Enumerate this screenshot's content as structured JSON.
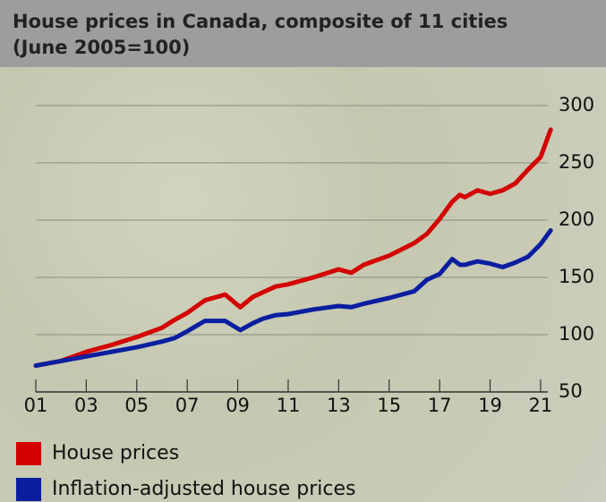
{
  "chart_data": {
    "type": "line",
    "title": "House prices in Canada, composite of 11 cities (June 2005=100)",
    "x": [
      2001,
      2002,
      2003,
      2004,
      2005,
      2006,
      2006.5,
      2007,
      2007.7,
      2008.5,
      2009.1,
      2009.6,
      2010,
      2010.5,
      2011,
      2012,
      2013,
      2013.5,
      2014,
      2015,
      2016,
      2016.5,
      2017,
      2017.5,
      2017.8,
      2018,
      2018.5,
      2019,
      2019.5,
      2020,
      2020.5,
      2021,
      2021.4
    ],
    "series": [
      {
        "name": "House prices",
        "color": "#d40000",
        "values": [
          73,
          77,
          85,
          91,
          98,
          106,
          113,
          119,
          130,
          135,
          124,
          133,
          137,
          142,
          144,
          150,
          157,
          154,
          161,
          169,
          180,
          188,
          201,
          216,
          222,
          220,
          226,
          223,
          226,
          232,
          244,
          255,
          279
        ]
      },
      {
        "name": "Inflation-adjusted house prices",
        "color": "#0a1ea0",
        "values": [
          73,
          77,
          81,
          85,
          89,
          94,
          97,
          103,
          112,
          112,
          104,
          110,
          114,
          117,
          118,
          122,
          125,
          124,
          127,
          132,
          138,
          148,
          153,
          166,
          161,
          161,
          164,
          162,
          159,
          163,
          168,
          179,
          191
        ]
      }
    ],
    "xlim": [
      2001,
      2021.5
    ],
    "xticks": [
      {
        "value": 2001,
        "label": "01"
      },
      {
        "value": 2003,
        "label": "03"
      },
      {
        "value": 2005,
        "label": "05"
      },
      {
        "value": 2007,
        "label": "07"
      },
      {
        "value": 2009,
        "label": "09"
      },
      {
        "value": 2011,
        "label": "11"
      },
      {
        "value": 2013,
        "label": "13"
      },
      {
        "value": 2015,
        "label": "15"
      },
      {
        "value": 2017,
        "label": "17"
      },
      {
        "value": 2019,
        "label": "19"
      },
      {
        "value": 2021,
        "label": "21"
      }
    ],
    "ylim": [
      50,
      300
    ],
    "yticks": [
      50,
      100,
      150,
      200,
      250,
      300
    ],
    "grid": true
  }
}
